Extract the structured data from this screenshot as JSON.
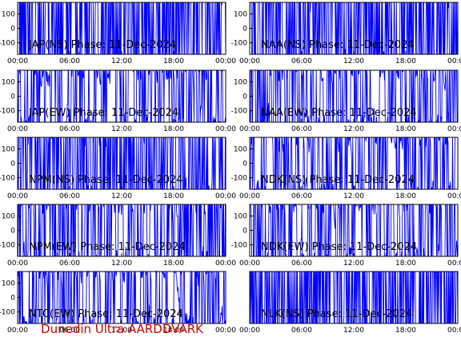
{
  "footer": "Dunedin Ultra AARDDVARK",
  "colors": {
    "trace": "#0000ff",
    "axis": "#000000",
    "footer": "#cc0000",
    "background": "#ffffff"
  },
  "chart_data": [
    {
      "type": "line",
      "title": "JAP(NS) Phase: 11-Dec-2024",
      "x_ticks": [
        "00:00",
        "06:00",
        "12:00",
        "18:00",
        "00:00"
      ],
      "y_ticks": [
        "100",
        "0",
        "-100"
      ],
      "ylim": [
        -180,
        180
      ],
      "density": 0.97,
      "grid": false
    },
    {
      "type": "line",
      "title": "NAA(NS) Phase: 11-Dec-2024",
      "x_ticks": [
        "00:00",
        "06:00",
        "12:00",
        "18:00",
        "00:00"
      ],
      "y_ticks": [
        "100",
        "0",
        "-100"
      ],
      "ylim": [
        -180,
        180
      ],
      "density": 0.97,
      "grid": false
    },
    {
      "type": "line",
      "title": "JAP(EW) Phase: 11-Dec-2024",
      "x_ticks": [
        "00:00",
        "06:00",
        "12:00",
        "18:00",
        "00:00"
      ],
      "y_ticks": [
        "100",
        "0",
        "-100"
      ],
      "ylim": [
        -180,
        180
      ],
      "density": 0.55,
      "grid": false
    },
    {
      "type": "line",
      "title": "NAA(EW) Phase: 11-Dec-2024",
      "x_ticks": [
        "00:00",
        "06:00",
        "12:00",
        "18:00",
        "00:00"
      ],
      "y_ticks": [
        "100",
        "0",
        "-100"
      ],
      "ylim": [
        -180,
        180
      ],
      "density": 0.55,
      "grid": false
    },
    {
      "type": "line",
      "title": "NPM(NS) Phase: 11-Dec-2024",
      "x_ticks": [
        "00:00",
        "06:00",
        "12:00",
        "18:00",
        "00:00"
      ],
      "y_ticks": [
        "100",
        "0",
        "-100"
      ],
      "ylim": [
        -180,
        180
      ],
      "density": 0.85,
      "grid": false
    },
    {
      "type": "line",
      "title": "NDK(NS) Phase: 11-Dec-2024",
      "x_ticks": [
        "00:00",
        "06:00",
        "12:00",
        "18:00",
        "00:00"
      ],
      "y_ticks": [
        "100",
        "0",
        "-100"
      ],
      "ylim": [
        -180,
        180
      ],
      "density": 0.6,
      "grid": false
    },
    {
      "type": "line",
      "title": "NPM(EW) Phase: 11-Dec-2024",
      "x_ticks": [
        "00:00",
        "06:00",
        "12:00",
        "18:00",
        "00:00"
      ],
      "y_ticks": [
        "100",
        "0",
        "-100"
      ],
      "ylim": [
        -180,
        180
      ],
      "density": 0.7,
      "grid": false
    },
    {
      "type": "line",
      "title": "NDK(EW) Phase: 11-Dec-2024",
      "x_ticks": [
        "00:00",
        "06:00",
        "12:00",
        "18:00",
        "00:00"
      ],
      "y_ticks": [
        "100",
        "0",
        "-100"
      ],
      "ylim": [
        -180,
        180
      ],
      "density": 0.6,
      "grid": false
    },
    {
      "type": "line",
      "title": "NTC(EW) Phase: 11-Dec-2024",
      "x_ticks": [
        "00:00",
        "06:00",
        "12:00",
        "18:00",
        "00:00"
      ],
      "y_ticks": [
        "100",
        "0",
        "-100"
      ],
      "ylim": [
        -180,
        180
      ],
      "density": 0.5,
      "grid": false
    },
    {
      "type": "line",
      "title": "NLK(NS) Phase: 11-Dec-2024",
      "x_ticks": [
        "00:00",
        "06:00",
        "12:00",
        "18:00",
        "00:00"
      ],
      "y_ticks": [],
      "ylim": [
        -180,
        180
      ],
      "density": 0.99,
      "grid": false
    }
  ]
}
